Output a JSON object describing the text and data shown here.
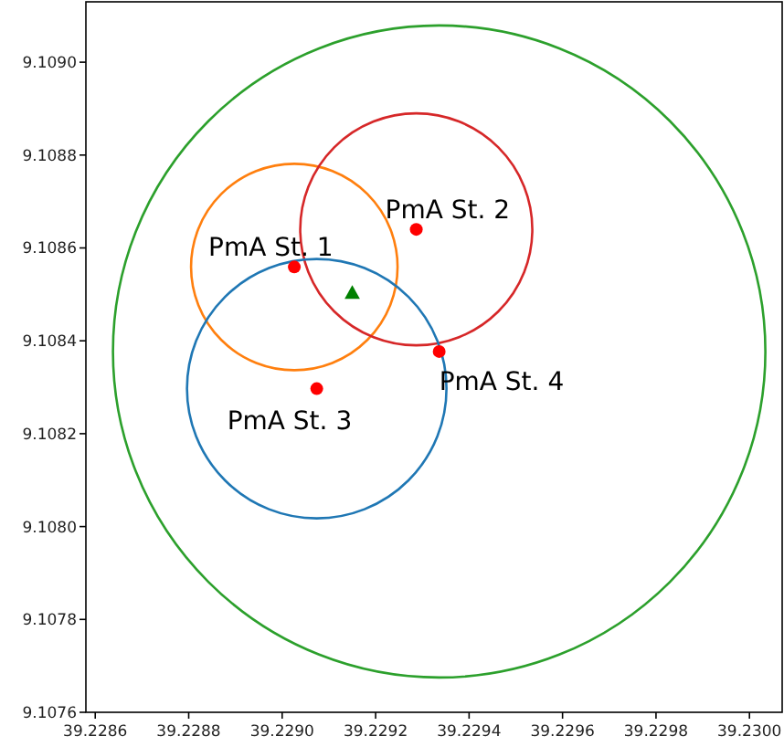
{
  "chart_data": {
    "type": "scatter",
    "xlim": [
      39.22858,
      39.23007
    ],
    "ylim": [
      9.1076,
      9.10913
    ],
    "xticks": [
      39.2286,
      39.2288,
      {
        "value": 39.229,
        "label": "39.2290"
      },
      39.2292,
      39.2294,
      39.2296,
      39.2298,
      {
        "value": 39.23,
        "label": "39.2300"
      }
    ],
    "yticks": [
      {
        "value": 9.1076,
        "label": "9.1076"
      },
      9.1078,
      {
        "value": 9.108,
        "label": "9.1080"
      },
      9.1082,
      9.1084,
      9.1086,
      9.1088,
      {
        "value": 9.109,
        "label": "9.1090"
      }
    ],
    "grid": false,
    "legend": false,
    "series": [
      {
        "type": "scatter",
        "marker": "circle",
        "color": "#ff0000",
        "x": [
          39.229026,
          39.229287,
          39.229074,
          39.229336
        ],
        "values": [
          9.108559,
          9.10864,
          9.108297,
          9.108377
        ]
      },
      {
        "type": "scatter",
        "marker": "triangle",
        "color": "#008000",
        "x": [
          39.22915
        ],
        "values": [
          9.108502
        ]
      }
    ],
    "annotations": [
      {
        "text": "PmA St. 1",
        "x": 39.229026,
        "y": 9.108559
      },
      {
        "text": "PmA St. 2",
        "x": 39.229287,
        "y": 9.10864
      },
      {
        "text": "PmA St. 3",
        "x": 39.229074,
        "y": 9.108297
      },
      {
        "text": "PmA St. 4",
        "x": 39.229336,
        "y": 9.108377
      }
    ]
  }
}
